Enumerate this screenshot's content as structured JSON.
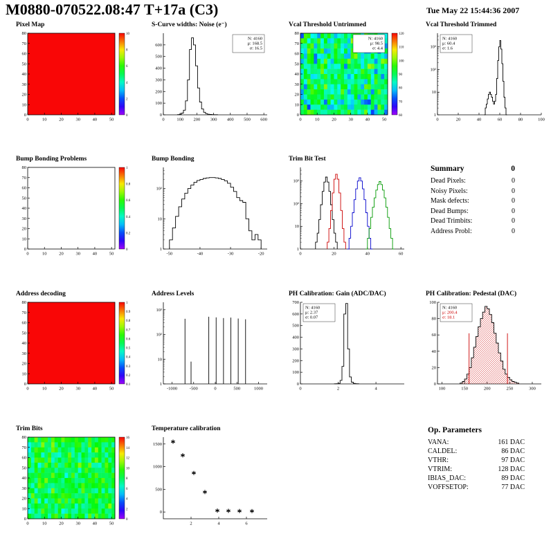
{
  "header": {
    "title": "M0880-070522.08:47 T+17a (C3)",
    "date": "Tue May 22 15:44:36 2007"
  },
  "summary": {
    "heading": "Summary",
    "value": "0",
    "rows": [
      {
        "label": "Dead Pixels:",
        "value": "0"
      },
      {
        "label": "Noisy Pixels:",
        "value": "0"
      },
      {
        "label": "Mask defects:",
        "value": "0"
      },
      {
        "label": "Dead Bumps:",
        "value": "0"
      },
      {
        "label": "Dead Trimbits:",
        "value": "0"
      },
      {
        "label": "Address Probl:",
        "value": "0"
      }
    ]
  },
  "op_parameters": {
    "heading": "Op. Parameters",
    "rows": [
      {
        "label": "VANA:",
        "value": "161 DAC"
      },
      {
        "label": "CALDEL:",
        "value": "86 DAC"
      },
      {
        "label": "VTHR:",
        "value": "97 DAC"
      },
      {
        "label": "VTRIM:",
        "value": "128 DAC"
      },
      {
        "label": "IBIAS_DAC:",
        "value": "89 DAC"
      },
      {
        "label": "VOFFSETOP:",
        "value": "77 DAC"
      }
    ]
  },
  "chart_data": [
    {
      "id": "pixel-map",
      "type": "heatmap",
      "title": "Pixel Map",
      "x_range": [
        0,
        52
      ],
      "x_ticks": [
        0,
        10,
        20,
        30,
        40,
        50
      ],
      "y_range": [
        0,
        80
      ],
      "y_ticks": [
        0,
        10,
        20,
        30,
        40,
        50,
        60,
        70,
        80
      ],
      "z_range": [
        0,
        10
      ],
      "z_labels": [
        10,
        8,
        6,
        4,
        2,
        0
      ],
      "fill_mode": "uniform",
      "fill_norm": 1,
      "colorbar": true
    },
    {
      "id": "scurve-noise-widths",
      "type": "histogram",
      "title": "S-Curve widths: Noise (e⁻)",
      "x_range": [
        0,
        620
      ],
      "x_ticks": [
        0,
        100,
        200,
        300,
        400,
        500,
        600
      ],
      "y_scale": "linear",
      "y_range": [
        0,
        700
      ],
      "y_ticks": [
        0,
        100,
        200,
        300,
        400,
        500,
        600
      ],
      "bins": {
        "start": 84,
        "width": 12,
        "values": [
          2,
          5,
          15,
          40,
          120,
          300,
          560,
          660,
          600,
          420,
          230,
          110,
          50,
          22,
          10,
          5,
          3,
          2,
          1,
          1
        ]
      },
      "stats": {
        "lines": [
          "N: 4160",
          "μ: 168.5",
          "σ: 16.5"
        ],
        "pos": "right"
      }
    },
    {
      "id": "vcal-threshold-untrimmed",
      "type": "heatmap",
      "title": "Vcal Threshold Untrimmed",
      "x_range": [
        0,
        52
      ],
      "x_ticks": [
        0,
        10,
        20,
        30,
        40,
        50
      ],
      "y_range": [
        0,
        80
      ],
      "y_ticks": [
        0,
        10,
        20,
        30,
        40,
        50,
        60,
        70,
        80
      ],
      "z_range": [
        60,
        126
      ],
      "z_labels": [
        120,
        110,
        100,
        90,
        80,
        70,
        60
      ],
      "fill_mode": "noise",
      "noise_mean": 0.45,
      "noise_spread": 0.18,
      "seed": 7,
      "colorbar": true,
      "stats": {
        "lines": [
          "N: 4160",
          "μ: 98.5",
          "σ: 4.4"
        ],
        "pos": "right"
      }
    },
    {
      "id": "vcal-threshold-trimmed",
      "type": "histogram",
      "title": "Vcal Threshold Trimmed",
      "x_range": [
        0,
        100
      ],
      "x_ticks": [
        0,
        20,
        40,
        60,
        80,
        100
      ],
      "y_scale": "log",
      "y_range": [
        1,
        4000
      ],
      "bins": {
        "start": 45,
        "width": 1,
        "values": [
          1,
          2,
          3,
          5,
          8,
          10,
          8,
          6,
          4,
          3,
          4,
          8,
          40,
          250,
          1000,
          1900,
          800,
          180,
          30,
          6,
          2,
          1
        ]
      },
      "stats": {
        "lines": [
          "N: 4160",
          "μ: 60.4",
          "σ: 1.6"
        ],
        "pos": "left"
      }
    },
    {
      "id": "bump-bonding-problems",
      "type": "heatmap",
      "title": "Bump Bonding Problems",
      "x_range": [
        0,
        52
      ],
      "x_ticks": [
        0,
        10,
        20,
        30,
        40,
        50
      ],
      "y_range": [
        0,
        80
      ],
      "y_ticks": [
        0,
        10,
        20,
        30,
        40,
        50,
        60,
        70,
        80
      ],
      "z_range": [
        0,
        1
      ],
      "z_labels": [
        1,
        0.8,
        0.6,
        0.4,
        0.2,
        0
      ],
      "fill_mode": "empty",
      "colorbar": true
    },
    {
      "id": "bump-bonding",
      "type": "histogram",
      "title": "Bump Bonding",
      "x_range": [
        -52,
        -18
      ],
      "x_ticks": [
        -50,
        -40,
        -30,
        -20
      ],
      "y_scale": "log",
      "y_range": [
        1,
        500
      ],
      "bins": {
        "start": -50,
        "width": 1,
        "values": [
          2,
          5,
          12,
          25,
          45,
          70,
          100,
          130,
          160,
          185,
          200,
          215,
          225,
          230,
          230,
          225,
          215,
          200,
          180,
          150,
          110,
          80,
          50,
          40,
          35,
          10,
          4,
          2,
          3,
          2
        ]
      }
    },
    {
      "id": "trim-bit-test",
      "type": "histogram",
      "title": "Trim Bit Test",
      "x_range": [
        0,
        62
      ],
      "x_ticks": [
        0,
        20,
        40,
        60
      ],
      "y_scale": "log",
      "y_range": [
        1,
        4000
      ],
      "series": [
        {
          "name": "trim-bits-14",
          "color": "#000000",
          "bins": {
            "start": 9,
            "width": 1,
            "values": [
              2,
              5,
              20,
              90,
              350,
              900,
              1500,
              900,
              350,
              90,
              20,
              5,
              2
            ]
          }
        },
        {
          "name": "trim-bits-10",
          "color": "#cc0000",
          "bins": {
            "start": 16,
            "width": 1,
            "values": [
              2,
              8,
              50,
              300,
              1200,
              2000,
              1200,
              300,
              50,
              8,
              2
            ]
          }
        },
        {
          "name": "trim-bits-7",
          "color": "#0000cc",
          "bins": {
            "start": 28,
            "width": 1,
            "values": [
              1,
              3,
              10,
              40,
              150,
              450,
              1000,
              1400,
              1000,
              450,
              150,
              40,
              10,
              3,
              1
            ]
          }
        },
        {
          "name": "trim-bits-3",
          "color": "#009900",
          "bins": {
            "start": 39,
            "width": 1,
            "values": [
              1,
              3,
              8,
              25,
              70,
              180,
              400,
              700,
              950,
              700,
              400,
              180,
              70,
              25,
              8,
              3,
              1
            ]
          }
        }
      ]
    },
    {
      "id": "address-decoding",
      "type": "heatmap",
      "title": "Address decoding",
      "x_range": [
        0,
        52
      ],
      "x_ticks": [
        0,
        10,
        20,
        30,
        40,
        50
      ],
      "y_range": [
        0,
        80
      ],
      "y_ticks": [
        0,
        10,
        20,
        30,
        40,
        50,
        60,
        70,
        80
      ],
      "z_range": [
        0,
        1
      ],
      "z_labels": [
        1,
        0.9,
        0.8,
        0.7,
        0.6,
        0.5,
        0.4,
        0.3,
        0.2,
        0.1
      ],
      "fill_mode": "uniform",
      "fill_norm": 1,
      "colorbar": true
    },
    {
      "id": "address-levels",
      "type": "spikes",
      "title": "Address Levels",
      "x_range": [
        -1200,
        1200
      ],
      "x_ticks": [
        -1000,
        -500,
        0,
        500,
        1000
      ],
      "y_scale": "log",
      "y_range": [
        1,
        2000
      ],
      "spikes": [
        [
          -700,
          430
        ],
        [
          -560,
          8
        ],
        [
          -150,
          520
        ],
        [
          20,
          490
        ],
        [
          190,
          460
        ],
        [
          360,
          480
        ],
        [
          530,
          440
        ],
        [
          700,
          410
        ]
      ]
    },
    {
      "id": "ph-calibration-gain",
      "type": "histogram",
      "title": "PH Calibration: Gain (ADC/DAC)",
      "x_range": [
        0,
        5.5
      ],
      "x_ticks": [
        0,
        2,
        4
      ],
      "y_scale": "linear",
      "y_range": [
        0,
        700
      ],
      "y_ticks": [
        0,
        100,
        200,
        300,
        400,
        500,
        600,
        700
      ],
      "bins": {
        "start": 1.8,
        "width": 0.1,
        "values": [
          1,
          2,
          5,
          30,
          150,
          600,
          690,
          300,
          60,
          15,
          5,
          2,
          1
        ]
      },
      "stats": {
        "lines": [
          "N: 4160",
          "μ: 2.37",
          "σ: 0.07"
        ],
        "pos": "left"
      }
    },
    {
      "id": "ph-calibration-pedestal",
      "type": "histogram",
      "title": "PH Calibration: Pedestal (DAC)",
      "x_range": [
        90,
        320
      ],
      "x_ticks": [
        100,
        150,
        200,
        250,
        300
      ],
      "y_scale": "linear",
      "y_range": [
        0,
        100
      ],
      "y_ticks": [
        0,
        20,
        40,
        60,
        80,
        100
      ],
      "fill": "red-hatch",
      "bins": {
        "start": 140,
        "width": 5,
        "values": [
          1,
          3,
          6,
          12,
          20,
          32,
          45,
          58,
          70,
          80,
          88,
          95,
          92,
          85,
          75,
          62,
          50,
          38,
          28,
          18,
          12,
          8,
          5,
          3,
          2,
          1
        ]
      },
      "cut_lines": [
        [
          160,
          62
        ],
        [
          245,
          62
        ]
      ],
      "stats": {
        "lines": [
          "N: 4160",
          "μ: 200.4",
          "σ: 18.1"
        ],
        "colors": [
          "#000000",
          "#cc0000",
          "#cc0000"
        ],
        "pos": "left"
      }
    },
    {
      "id": "trim-bits",
      "type": "heatmap",
      "title": "Trim Bits",
      "x_range": [
        0,
        52
      ],
      "x_ticks": [
        0,
        10,
        20,
        30,
        40,
        50
      ],
      "y_range": [
        0,
        80
      ],
      "y_ticks": [
        0,
        10,
        20,
        30,
        40,
        50,
        60,
        70,
        80
      ],
      "z_range": [
        0,
        16
      ],
      "z_labels": [
        16,
        14,
        12,
        10,
        8,
        6,
        4,
        2,
        0
      ],
      "fill_mode": "noise",
      "noise_mean": 0.52,
      "noise_spread": 0.12,
      "seed": 13,
      "colorbar": true
    },
    {
      "id": "temperature-calibration",
      "type": "scatter",
      "title": "Temperature calibration",
      "x_range": [
        0,
        7.5
      ],
      "x_ticks": [
        2,
        4,
        6
      ],
      "y_scale": "linear",
      "y_range": [
        -150,
        1650
      ],
      "y_ticks": [
        0,
        500,
        1000,
        1500
      ],
      "marker": "asterisk",
      "points": [
        [
          0.7,
          1550
        ],
        [
          1.4,
          1250
        ],
        [
          2.2,
          860
        ],
        [
          3.0,
          440
        ],
        [
          3.9,
          30
        ],
        [
          4.7,
          25
        ],
        [
          5.5,
          22
        ],
        [
          6.4,
          20
        ]
      ]
    }
  ]
}
